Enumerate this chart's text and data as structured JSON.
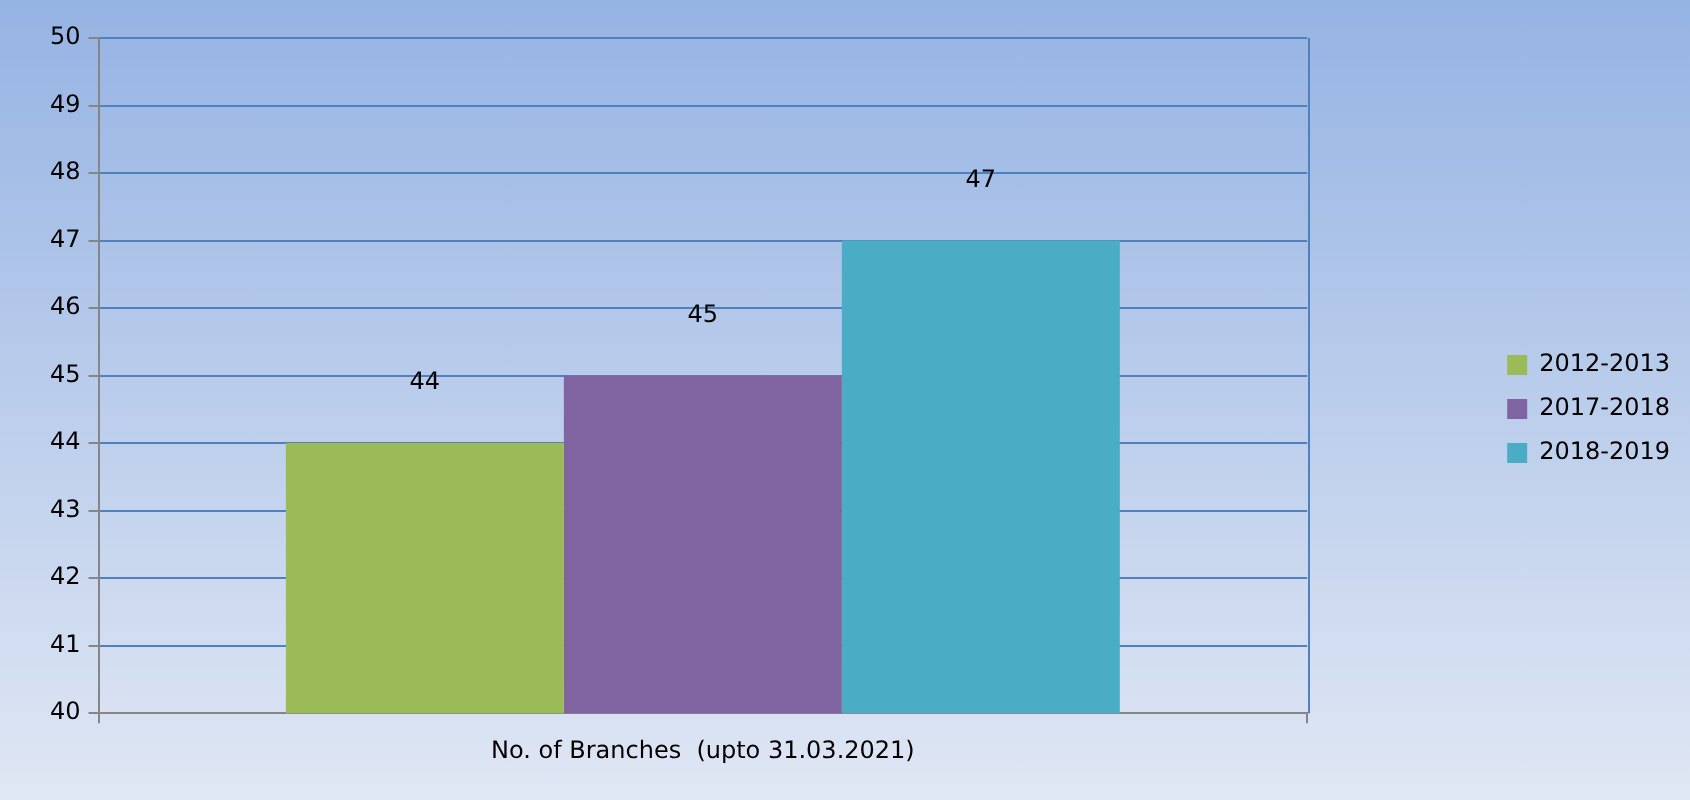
{
  "chart_data": {
    "type": "bar",
    "categories": [
      "No. of Branches  (upto 31.03.2021)"
    ],
    "series": [
      {
        "name": "2012-2013",
        "color": "#9bbb59",
        "values": [
          44
        ]
      },
      {
        "name": "2017-2018",
        "color": "#8064a2",
        "values": [
          45
        ]
      },
      {
        "name": "2018-2019",
        "color": "#4bacc6",
        "values": [
          47
        ]
      }
    ],
    "ylim": [
      40,
      50
    ],
    "yticks": [
      40,
      41,
      42,
      43,
      44,
      45,
      46,
      47,
      48,
      49,
      50
    ],
    "grid": "y",
    "legend": "right",
    "data_labels": true
  }
}
